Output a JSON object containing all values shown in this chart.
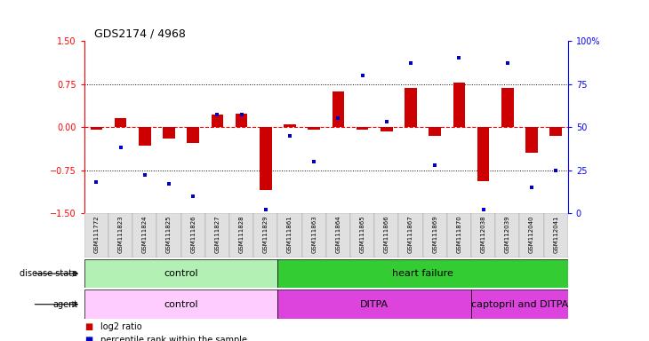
{
  "title": "GDS2174 / 4968",
  "samples": [
    "GSM111772",
    "GSM111823",
    "GSM111824",
    "GSM111825",
    "GSM111826",
    "GSM111827",
    "GSM111828",
    "GSM111829",
    "GSM111861",
    "GSM111863",
    "GSM111864",
    "GSM111865",
    "GSM111866",
    "GSM111867",
    "GSM111869",
    "GSM111870",
    "GSM112038",
    "GSM112039",
    "GSM112040",
    "GSM112041"
  ],
  "log2_ratio": [
    -0.05,
    0.15,
    -0.32,
    -0.2,
    -0.28,
    0.22,
    0.23,
    -1.1,
    0.05,
    -0.05,
    0.62,
    -0.05,
    -0.08,
    0.68,
    -0.15,
    0.78,
    -0.95,
    0.68,
    -0.45,
    -0.15
  ],
  "percentile_rank": [
    18,
    38,
    22,
    17,
    10,
    57,
    57,
    2,
    45,
    30,
    55,
    80,
    53,
    87,
    28,
    90,
    2,
    87,
    15,
    25
  ],
  "disease_state_groups": [
    {
      "label": "control",
      "start": 0,
      "end": 7,
      "color": "#b3f0b3"
    },
    {
      "label": "heart failure",
      "start": 8,
      "end": 19,
      "color": "#33cc33"
    }
  ],
  "agent_groups": [
    {
      "label": "control",
      "start": 0,
      "end": 7,
      "color": "#ffccff"
    },
    {
      "label": "DITPA",
      "start": 8,
      "end": 15,
      "color": "#ee55ee"
    },
    {
      "label": "captopril and DITPA",
      "start": 16,
      "end": 19,
      "color": "#ee55ee"
    }
  ],
  "bar_color": "#cc0000",
  "dot_color": "#0000cc",
  "ylim_left": [
    -1.5,
    1.5
  ],
  "ylim_right": [
    0,
    100
  ],
  "yticks_left": [
    -1.5,
    -0.75,
    0,
    0.75,
    1.5
  ],
  "yticks_right": [
    0,
    25,
    50,
    75,
    100
  ],
  "hline_values": [
    0.75,
    0,
    -0.75
  ]
}
